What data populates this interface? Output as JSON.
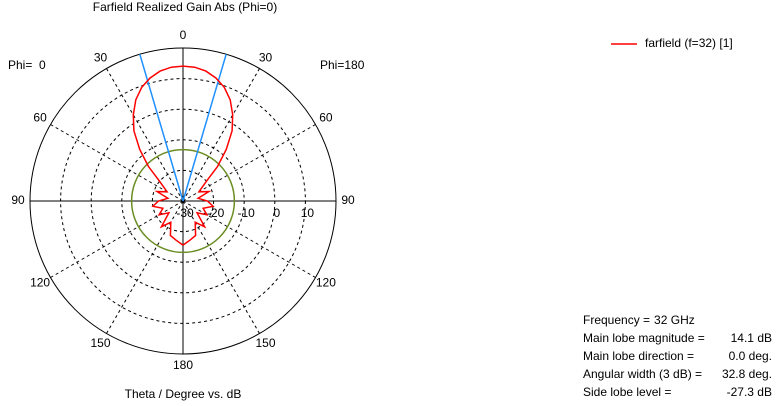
{
  "chart_data": {
    "type": "polar",
    "title": "Farfield Realized Gain Abs (Phi=0)",
    "left_label": "Phi=  0",
    "right_label": "Phi=180",
    "xlabel": "Theta / Degree vs. dB",
    "angle_ticks": [
      0,
      30,
      60,
      90,
      120,
      150,
      180
    ],
    "rlim": [
      -30,
      20
    ],
    "rticks": [
      -30,
      -20,
      -10,
      0,
      10
    ],
    "x": [
      -180,
      -170,
      -160,
      -150,
      -140,
      -130,
      -120,
      -110,
      -100,
      -90,
      -80,
      -70,
      -60,
      -50,
      -45,
      -40,
      -35,
      -30,
      -25,
      -20,
      -15,
      -10,
      -5,
      0,
      5,
      10,
      15,
      20,
      25,
      30,
      35,
      40,
      45,
      50,
      60,
      70,
      80,
      90,
      100,
      110,
      120,
      130,
      140,
      150,
      160,
      170,
      180
    ],
    "series": [
      {
        "name": "farfield (f=32) [1]",
        "color": "#ff0000",
        "values": [
          -15.6,
          -17,
          -18,
          -22,
          -19,
          -24,
          -21,
          -23,
          -20,
          -22,
          -25,
          -21,
          -24,
          -20,
          -14,
          -8,
          -2,
          2.5,
          6.5,
          9.5,
          11.6,
          13.1,
          13.9,
          14.1,
          13.9,
          13.1,
          11.6,
          9.5,
          6.5,
          2.5,
          -2,
          -8,
          -14,
          -20,
          -24,
          -21,
          -25,
          -22,
          -20,
          -23,
          -21,
          -24,
          -19,
          -22,
          -18,
          -17,
          -15.6
        ]
      }
    ],
    "info": [
      {
        "label": "Frequency =",
        "value": 32,
        "value_label": "32 GHz"
      },
      {
        "label": "Main lobe magnitude =",
        "value": 14.1,
        "value_label": "14.1 dB"
      },
      {
        "label": "Main lobe direction =",
        "value": 0.0,
        "value_label": "0.0 deg."
      },
      {
        "label": "Angular width (3 dB) =",
        "value": 32.8,
        "value_label": "32.8 deg."
      },
      {
        "label": "Side lobe level =",
        "value": -27.3,
        "value_label": "-27.3 dB"
      }
    ]
  }
}
